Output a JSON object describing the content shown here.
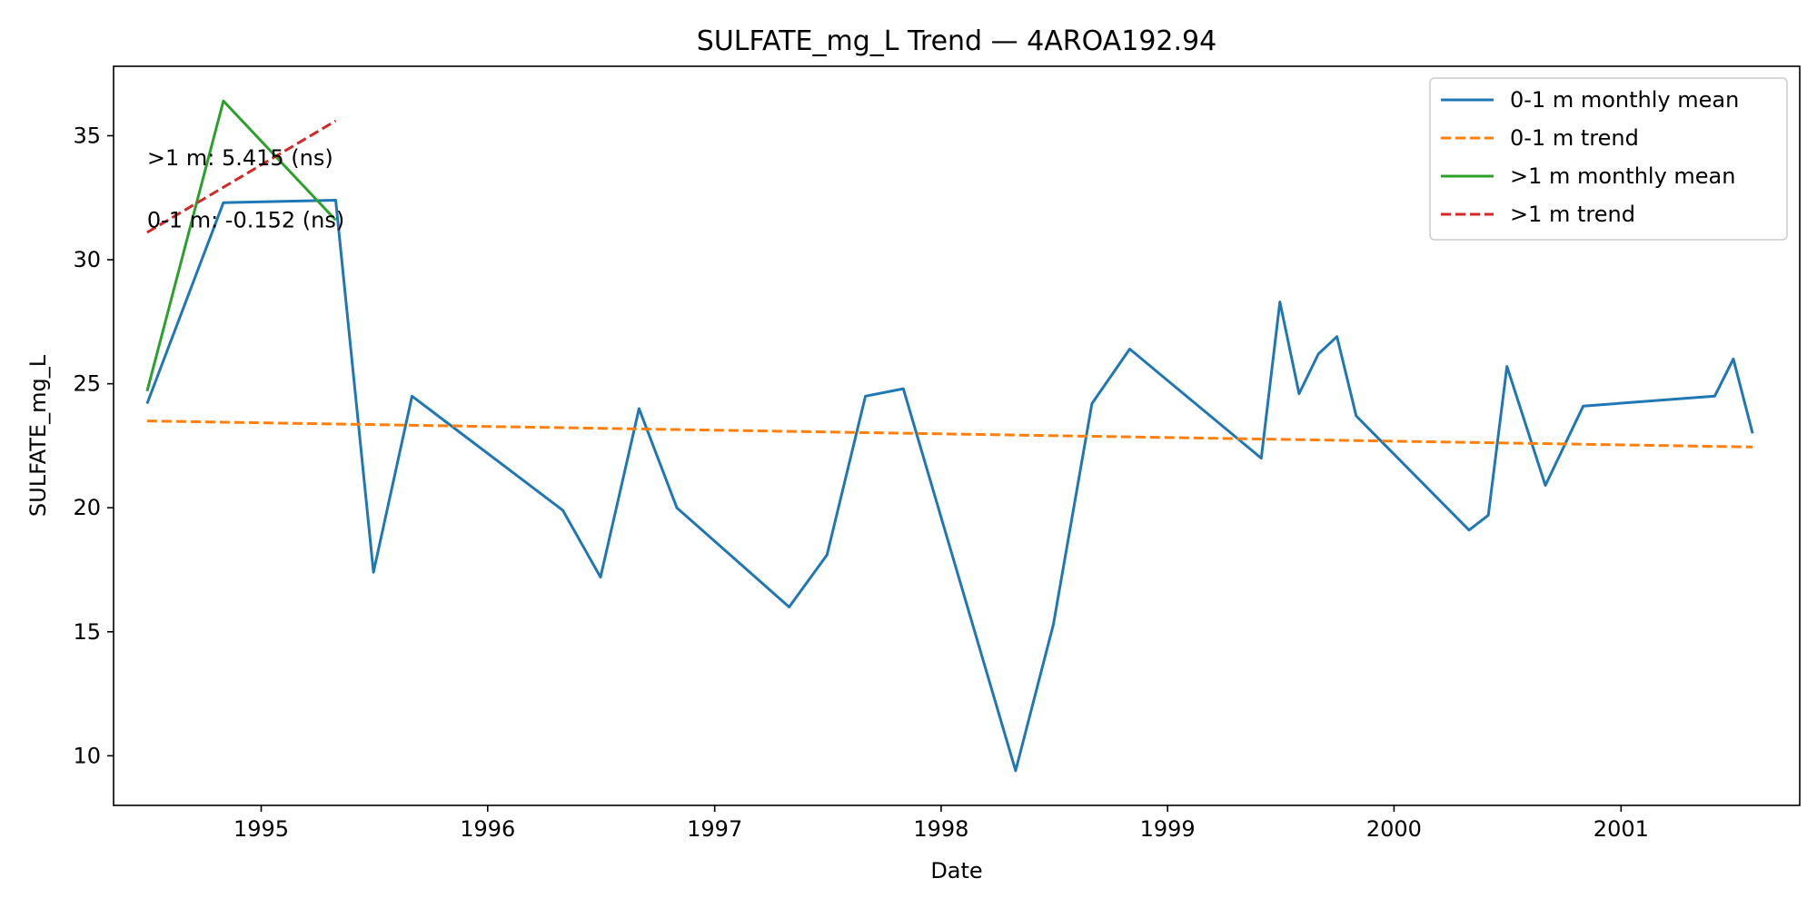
{
  "chart_data": {
    "type": "line",
    "title": "SULFATE_mg_L Trend — 4AROA192.94",
    "xlabel": "Date",
    "ylabel": "SULFATE_mg_L",
    "xlim": [
      "1994-05-08",
      "2001-10-16"
    ],
    "ylim": [
      8.0,
      37.8
    ],
    "x_ticks": [
      "1995",
      "1996",
      "1997",
      "1998",
      "1999",
      "2000",
      "2001"
    ],
    "y_ticks": [
      "10",
      "15",
      "20",
      "25",
      "30",
      "35"
    ],
    "grid": false,
    "legend_position": "upper right",
    "series": [
      {
        "name": "0-1 m monthly mean",
        "color": "#1f77b4",
        "style": "solid",
        "points": [
          [
            "1994-07-01",
            24.2
          ],
          [
            "1994-11-01",
            32.3
          ],
          [
            "1995-05-01",
            32.4
          ],
          [
            "1995-07-01",
            17.4
          ],
          [
            "1995-09-01",
            24.5
          ],
          [
            "1996-05-01",
            19.9
          ],
          [
            "1996-07-01",
            17.2
          ],
          [
            "1996-09-01",
            24.0
          ],
          [
            "1996-11-01",
            20.0
          ],
          [
            "1997-05-01",
            16.0
          ],
          [
            "1997-07-01",
            18.1
          ],
          [
            "1997-09-01",
            24.5
          ],
          [
            "1997-11-01",
            24.8
          ],
          [
            "1998-05-01",
            9.4
          ],
          [
            "1998-07-01",
            15.3
          ],
          [
            "1998-09-01",
            24.2
          ],
          [
            "1998-11-01",
            26.4
          ],
          [
            "1999-06-01",
            22.0
          ],
          [
            "1999-07-01",
            28.3
          ],
          [
            "1999-08-01",
            24.6
          ],
          [
            "1999-09-01",
            26.2
          ],
          [
            "1999-10-01",
            26.9
          ],
          [
            "1999-11-01",
            23.7
          ],
          [
            "2000-05-01",
            19.1
          ],
          [
            "2000-06-01",
            19.7
          ],
          [
            "2000-07-01",
            25.7
          ],
          [
            "2000-09-01",
            20.9
          ],
          [
            "2000-11-01",
            24.1
          ],
          [
            "2001-06-01",
            24.5
          ],
          [
            "2001-07-01",
            26.0
          ],
          [
            "2001-08-01",
            23.0
          ]
        ]
      },
      {
        "name": "0-1 m trend",
        "color": "#ff7f0e",
        "style": "dashed",
        "points": [
          [
            "1994-07-01",
            23.5
          ],
          [
            "2001-08-01",
            22.45
          ]
        ]
      },
      {
        "name": ">1 m monthly mean",
        "color": "#2ca02c",
        "style": "solid",
        "points": [
          [
            "1994-07-01",
            24.7
          ],
          [
            "1994-11-01",
            36.4
          ],
          [
            "1995-05-01",
            31.6
          ]
        ]
      },
      {
        "name": ">1 m trend",
        "color": "#d62728",
        "style": "dashed",
        "points": [
          [
            "1994-07-01",
            31.1
          ],
          [
            "1995-05-01",
            35.6
          ]
        ]
      }
    ],
    "annotations": [
      {
        "text": ">1 m: 5.415 (ns)",
        "x": "1994-07-01",
        "y": 34.1
      },
      {
        "text": "0-1 m: -0.152 (ns)",
        "x": "1994-07-01",
        "y": 31.6
      }
    ]
  }
}
